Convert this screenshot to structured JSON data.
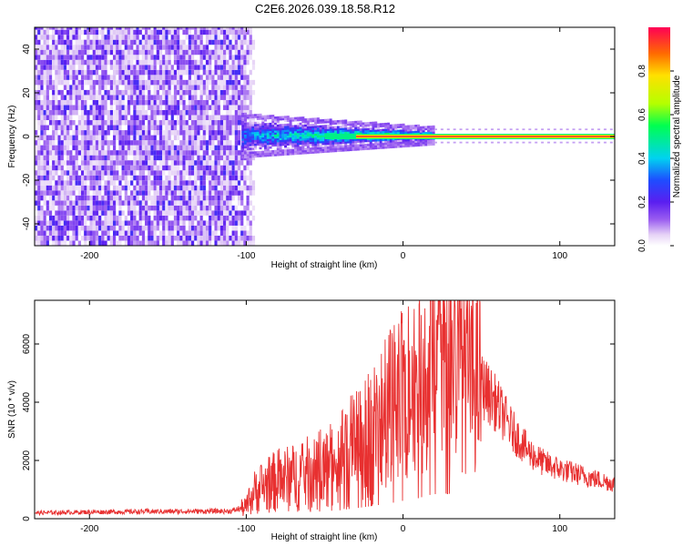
{
  "title": "C2E6.2026.039.18.58.R12",
  "chart_data": [
    {
      "type": "heatmap",
      "title": "C2E6.2026.039.18.58.R12",
      "xlabel": "Height of straight line (km)",
      "ylabel": "Frequency (Hz)",
      "xlim": [
        -235,
        135
      ],
      "ylim": [
        -50,
        50
      ],
      "xticks": [
        -200,
        -100,
        0,
        100
      ],
      "yticks": [
        -40,
        -20,
        0,
        20,
        40
      ],
      "colorbar": {
        "label": "Normalized spectral amplitude",
        "range": [
          0,
          1
        ],
        "ticks": [
          0.0,
          0.2,
          0.4,
          0.6,
          0.8
        ]
      },
      "regions": [
        {
          "name": "broadband noise",
          "x_range": [
            -235,
            -103
          ],
          "freq_range": [
            -50,
            50
          ],
          "amplitude": 0.1
        },
        {
          "name": "signal onset",
          "x_range": [
            -103,
            -60
          ],
          "freq_range": [
            -5,
            5
          ],
          "amplitude": 0.45
        },
        {
          "name": "tone",
          "x_range": [
            -60,
            135
          ],
          "freq": 0,
          "amplitude": 0.95
        }
      ]
    },
    {
      "type": "line",
      "xlabel": "Height of straight line (km)",
      "ylabel": "SNR (10 * v/v)",
      "xlim": [
        -235,
        135
      ],
      "ylim": [
        0,
        7500
      ],
      "xticks": [
        -200,
        -100,
        0,
        100
      ],
      "yticks": [
        0,
        2000,
        4000,
        6000
      ],
      "series": [
        {
          "name": "SNR",
          "color": "#e83030",
          "x": [
            -235,
            -200,
            -150,
            -110,
            -100,
            -95,
            -90,
            -80,
            -70,
            -60,
            -50,
            -40,
            -30,
            -20,
            -10,
            0,
            10,
            15,
            20,
            25,
            30,
            35,
            40,
            50,
            60,
            70,
            80,
            90,
            100,
            110,
            120,
            135
          ],
          "y": [
            200,
            230,
            250,
            260,
            400,
            900,
            1100,
            1300,
            1400,
            1550,
            1700,
            1950,
            2400,
            2900,
            3400,
            4100,
            4700,
            5300,
            5600,
            5800,
            5700,
            5500,
            5100,
            4600,
            3900,
            3000,
            2300,
            1900,
            1700,
            1550,
            1400,
            1200
          ]
        }
      ]
    }
  ]
}
